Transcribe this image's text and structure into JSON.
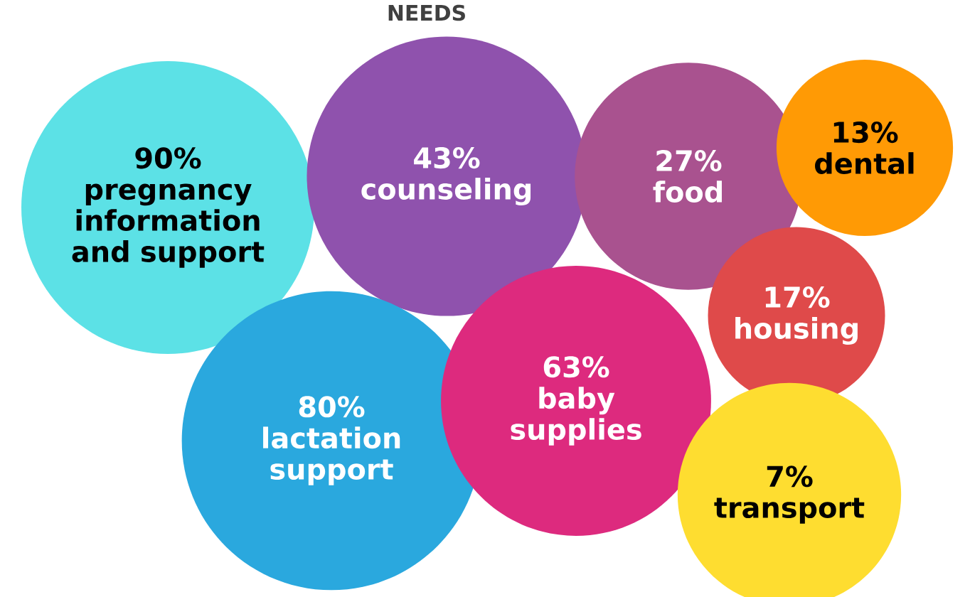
{
  "chart_data": {
    "type": "other",
    "title": "NEEDS",
    "categories": [
      "pregnancy information and support",
      "counseling",
      "food",
      "housing",
      "dental",
      "lactation support",
      "baby supplies",
      "transport"
    ],
    "values": [
      90,
      43,
      27,
      17,
      13,
      80,
      63,
      7
    ],
    "value_labels": [
      "90%",
      "43%",
      "27%",
      "17%",
      "13%",
      "80%",
      "63%",
      "7%"
    ],
    "colors": [
      "#5ce1e6",
      "#8f52ad",
      "#a9528f",
      "#df4a4a",
      "#ff9a05",
      "#2aa8de",
      "#dd2a7e",
      "#fedd30"
    ]
  }
}
